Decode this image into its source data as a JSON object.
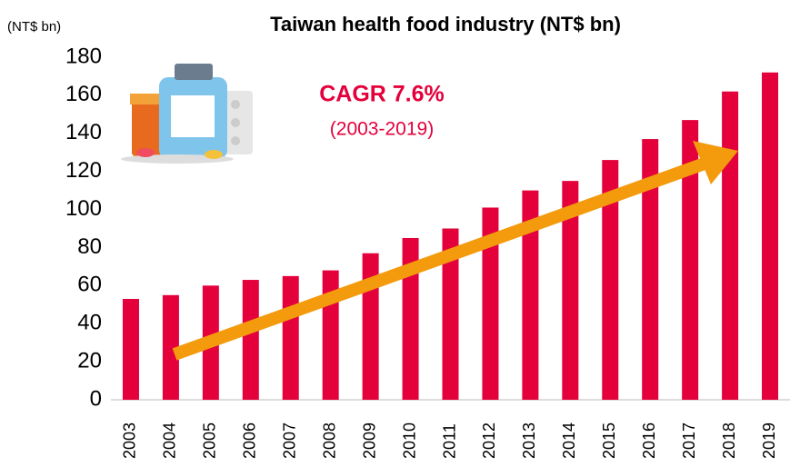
{
  "chart_data": {
    "type": "bar",
    "title": "Taiwan health food industry (NT$ bn)",
    "unit_label": "(NT$ bn)",
    "annotations": [
      "CAGR 7.6%",
      "(2003-2019)"
    ],
    "categories": [
      "2003",
      "2004",
      "2005",
      "2006",
      "2007",
      "2008",
      "2009",
      "2010",
      "2011",
      "2012",
      "2013",
      "2014",
      "2015",
      "2016",
      "2017",
      "2018",
      "2019"
    ],
    "values": [
      53,
      55,
      60,
      63,
      65,
      68,
      77,
      85,
      90,
      101,
      110,
      115,
      126,
      137,
      147,
      162,
      172
    ],
    "color": "#e4003b",
    "ylim": [
      0,
      180
    ],
    "yticks": [
      0,
      20,
      40,
      60,
      80,
      100,
      120,
      140,
      160,
      180
    ],
    "grid": false
  }
}
